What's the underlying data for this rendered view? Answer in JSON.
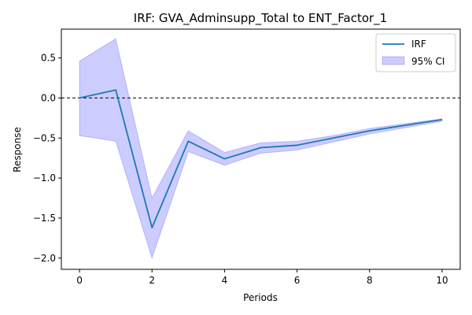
{
  "chart_data": {
    "type": "line",
    "title": "IRF: GVA_Adminsupp_Total to ENT_Factor_1",
    "xlabel": "Periods",
    "ylabel": "Response",
    "xlim": [
      -0.5,
      10.5
    ],
    "ylim": [
      -2.14,
      0.86
    ],
    "xticks": [
      0,
      2,
      4,
      6,
      8,
      10
    ],
    "xtick_labels": [
      "0",
      "2",
      "4",
      "6",
      "8",
      "10"
    ],
    "yticks": [
      0.5,
      0.0,
      -0.5,
      -1.0,
      -1.5,
      -2.0
    ],
    "ytick_labels": [
      "0.5",
      "0.0",
      "−0.5",
      "−1.0",
      "−1.5",
      "−2.0"
    ],
    "x": [
      0,
      1,
      2,
      3,
      4,
      5,
      6,
      7,
      8,
      9,
      10
    ],
    "series": [
      {
        "name": "IRF",
        "values": [
          0.0,
          0.1,
          -1.62,
          -0.54,
          -0.76,
          -0.62,
          -0.59,
          -0.5,
          -0.41,
          -0.34,
          -0.27
        ],
        "color": "#1f77b4"
      }
    ],
    "ci": {
      "name": "95% CI",
      "lower": [
        -0.47,
        -0.54,
        -2.0,
        -0.67,
        -0.84,
        -0.69,
        -0.65,
        -0.55,
        -0.45,
        -0.37,
        -0.29
      ],
      "upper": [
        0.46,
        0.74,
        -1.25,
        -0.41,
        -0.68,
        -0.56,
        -0.54,
        -0.47,
        -0.38,
        -0.32,
        -0.26
      ],
      "color": "#0000ff"
    },
    "reference_line": {
      "y": 0,
      "style": "dashed",
      "color": "#000000"
    },
    "legend_position": "top-right",
    "grid": false
  }
}
